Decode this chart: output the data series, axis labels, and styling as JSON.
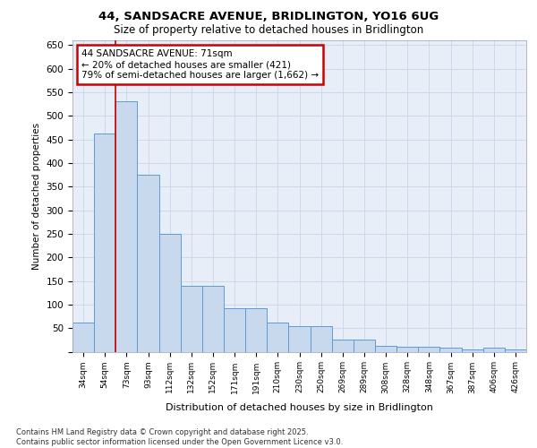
{
  "title_line1": "44, SANDSACRE AVENUE, BRIDLINGTON, YO16 6UG",
  "title_line2": "Size of property relative to detached houses in Bridlington",
  "xlabel": "Distribution of detached houses by size in Bridlington",
  "ylabel": "Number of detached properties",
  "categories": [
    "34sqm",
    "54sqm",
    "73sqm",
    "93sqm",
    "112sqm",
    "132sqm",
    "152sqm",
    "171sqm",
    "191sqm",
    "210sqm",
    "230sqm",
    "250sqm",
    "269sqm",
    "289sqm",
    "308sqm",
    "328sqm",
    "348sqm",
    "367sqm",
    "387sqm",
    "406sqm",
    "426sqm"
  ],
  "values": [
    62,
    462,
    530,
    375,
    250,
    140,
    140,
    93,
    93,
    62,
    55,
    55,
    25,
    25,
    12,
    10,
    10,
    8,
    5,
    8,
    4
  ],
  "bar_color": "#c8d9ee",
  "bar_edge_color": "#5b9bd5",
  "grid_color": "#c8d4e8",
  "background_color": "#e8eef8",
  "vline_color": "#cc0000",
  "vline_x": 1.5,
  "annotation_text_line1": "44 SANDSACRE AVENUE: 71sqm",
  "annotation_text_line2": "← 20% of detached houses are smaller (421)",
  "annotation_text_line3": "79% of semi-detached houses are larger (1,662) →",
  "annotation_box_color": "#cc0000",
  "ylim": [
    0,
    660
  ],
  "yticks": [
    0,
    50,
    100,
    150,
    200,
    250,
    300,
    350,
    400,
    450,
    500,
    550,
    600,
    650
  ],
  "footnote": "Contains HM Land Registry data © Crown copyright and database right 2025.\nContains public sector information licensed under the Open Government Licence v3.0."
}
